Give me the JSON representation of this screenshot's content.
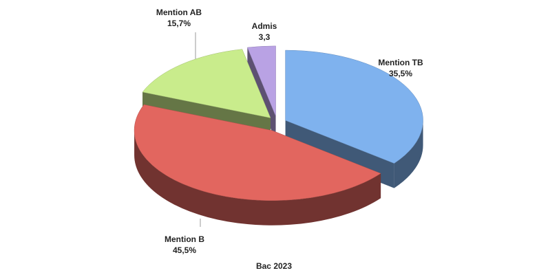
{
  "chart_data": {
    "type": "pie",
    "title": "Bac 2023",
    "categories": [
      "Mention TB",
      "Mention B",
      "Mention AB",
      "Admis"
    ],
    "values": [
      35.5,
      45.5,
      15.7,
      3.3
    ],
    "value_labels": [
      "35,5%",
      "45,5%",
      "15,7%",
      "3,3"
    ],
    "colors": [
      "#7fb2ee",
      "#e2665f",
      "#c9ec8c",
      "#b9a2e4"
    ]
  }
}
